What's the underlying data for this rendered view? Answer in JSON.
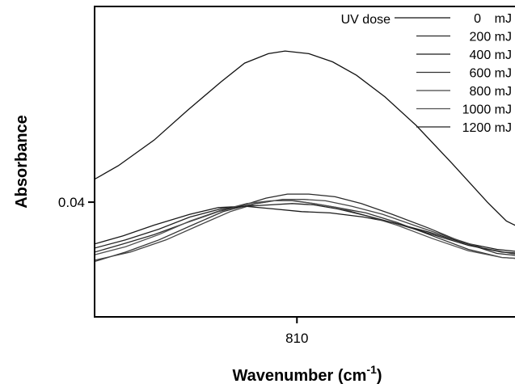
{
  "chart_data": {
    "type": "line",
    "title": "",
    "xlabel": "Wavenumber",
    "xlabel_unit_base": "(cm",
    "xlabel_unit_exp": "-1",
    "xlabel_unit_close": ")",
    "ylabel": "Absorbance",
    "xlim": [
      818.5,
      800.5
    ],
    "ylim": [
      0.0315,
      0.0545
    ],
    "x_direction": "decreasing",
    "x_ticks": [
      {
        "value": 810,
        "label": "810"
      }
    ],
    "y_ticks": [
      {
        "value": 0.04,
        "label": "0.04"
      }
    ],
    "grid": false,
    "legend": {
      "title": "UV dose",
      "position": "top-right",
      "entries": [
        "0",
        "200 mJ",
        "400 mJ",
        "600 mJ",
        "800 mJ",
        "1000 mJ",
        "1200 mJ"
      ],
      "unit": "mJ"
    },
    "series": [
      {
        "name": "0",
        "color": "#111111",
        "points": [
          [
            818.5,
            0.0417
          ],
          [
            817.5,
            0.0427
          ],
          [
            816,
            0.0446
          ],
          [
            814.6,
            0.0468
          ],
          [
            813.2,
            0.0489
          ],
          [
            812.2,
            0.0503
          ],
          [
            811.2,
            0.051
          ],
          [
            810.5,
            0.0512
          ],
          [
            809.5,
            0.051
          ],
          [
            808.5,
            0.0504
          ],
          [
            807.5,
            0.0494
          ],
          [
            806.3,
            0.0478
          ],
          [
            805,
            0.0457
          ],
          [
            803.5,
            0.0429
          ],
          [
            802,
            0.04
          ],
          [
            801.2,
            0.0386
          ],
          [
            800.5,
            0.038
          ]
        ]
      },
      {
        "name": "200 mJ",
        "color": "#2a2a2a",
        "points": [
          [
            818.5,
            0.0363
          ],
          [
            817.3,
            0.0369
          ],
          [
            816,
            0.0376
          ],
          [
            814.6,
            0.0385
          ],
          [
            813.3,
            0.0393
          ],
          [
            812.2,
            0.0398
          ],
          [
            811.3,
            0.0403
          ],
          [
            810.4,
            0.0406
          ],
          [
            809.5,
            0.0406
          ],
          [
            808.4,
            0.0404
          ],
          [
            807.3,
            0.0399
          ],
          [
            806,
            0.0391
          ],
          [
            804.5,
            0.0381
          ],
          [
            803,
            0.037
          ],
          [
            801.6,
            0.0362
          ],
          [
            800.5,
            0.036
          ]
        ]
      },
      {
        "name": "400 mJ",
        "color": "#1a1a1a",
        "points": [
          [
            818.5,
            0.0369
          ],
          [
            817.3,
            0.0375
          ],
          [
            816,
            0.0383
          ],
          [
            814.5,
            0.0391
          ],
          [
            813.3,
            0.0396
          ],
          [
            812.2,
            0.0397
          ],
          [
            811,
            0.0395
          ],
          [
            809.8,
            0.0393
          ],
          [
            808.6,
            0.0392
          ],
          [
            807.2,
            0.0389
          ],
          [
            806,
            0.0385
          ],
          [
            804.5,
            0.0378
          ],
          [
            803,
            0.037
          ],
          [
            801.6,
            0.0365
          ],
          [
            800.5,
            0.0363
          ]
        ]
      },
      {
        "name": "600 mJ",
        "color": "#333333",
        "points": [
          [
            818.5,
            0.0356
          ],
          [
            817.2,
            0.0363
          ],
          [
            815.8,
            0.0372
          ],
          [
            814.4,
            0.0383
          ],
          [
            813.1,
            0.0393
          ],
          [
            812,
            0.0398
          ],
          [
            811,
            0.0401
          ],
          [
            810.1,
            0.0401
          ],
          [
            809.3,
            0.0399
          ],
          [
            808.3,
            0.0396
          ],
          [
            807.1,
            0.0392
          ],
          [
            805.8,
            0.0385
          ],
          [
            804.3,
            0.0375
          ],
          [
            802.8,
            0.0365
          ],
          [
            801.4,
            0.0359
          ],
          [
            800.5,
            0.0358
          ]
        ]
      },
      {
        "name": "800 mJ",
        "color": "#444444",
        "points": [
          [
            818.5,
            0.0357
          ],
          [
            817,
            0.0363
          ],
          [
            815.5,
            0.0372
          ],
          [
            814.1,
            0.0383
          ],
          [
            812.8,
            0.0393
          ],
          [
            811.7,
            0.0399
          ],
          [
            810.6,
            0.0402
          ],
          [
            809.7,
            0.0402
          ],
          [
            808.8,
            0.0401
          ],
          [
            807.7,
            0.0397
          ],
          [
            806.4,
            0.0391
          ],
          [
            805.1,
            0.0383
          ],
          [
            803.6,
            0.0374
          ],
          [
            802.2,
            0.0366
          ],
          [
            801,
            0.0362
          ],
          [
            800.5,
            0.0361
          ]
        ]
      },
      {
        "name": "1000 mJ",
        "color": "#505050",
        "points": [
          [
            818.5,
            0.0361
          ],
          [
            817.2,
            0.0367
          ],
          [
            815.8,
            0.0376
          ],
          [
            814.5,
            0.0386
          ],
          [
            813.2,
            0.0394
          ],
          [
            812.1,
            0.0399
          ],
          [
            811.1,
            0.0401
          ],
          [
            810.2,
            0.0401
          ],
          [
            809.3,
            0.0399
          ],
          [
            808.3,
            0.0396
          ],
          [
            807.1,
            0.039
          ],
          [
            805.8,
            0.0383
          ],
          [
            804.3,
            0.0373
          ],
          [
            802.8,
            0.0364
          ],
          [
            801.4,
            0.0359
          ],
          [
            800.5,
            0.0358
          ]
        ]
      },
      {
        "name": "1200 mJ",
        "color": "#222222",
        "points": [
          [
            818.5,
            0.0366
          ],
          [
            817.2,
            0.0372
          ],
          [
            815.8,
            0.038
          ],
          [
            814.5,
            0.0389
          ],
          [
            813.2,
            0.0395
          ],
          [
            812.1,
            0.0397
          ],
          [
            811.1,
            0.0398
          ],
          [
            810.2,
            0.0399
          ],
          [
            809.3,
            0.0398
          ],
          [
            808.3,
            0.0395
          ],
          [
            807.1,
            0.039
          ],
          [
            805.8,
            0.0384
          ],
          [
            804.3,
            0.0376
          ],
          [
            802.8,
            0.0368
          ],
          [
            801.4,
            0.0363
          ],
          [
            800.5,
            0.0362
          ]
        ]
      }
    ]
  }
}
